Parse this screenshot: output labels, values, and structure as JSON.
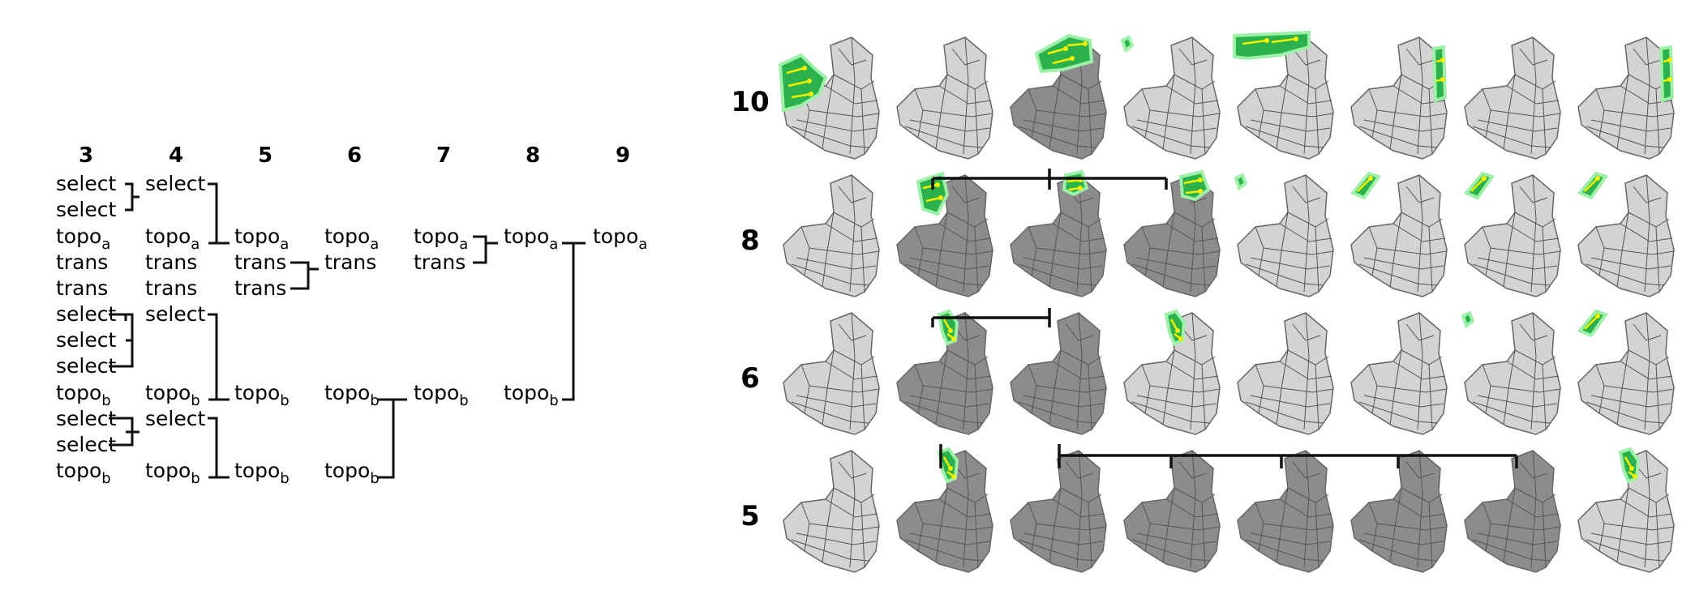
{
  "program_tree": {
    "column_labels": [
      "3",
      "4",
      "5",
      "6",
      "7",
      "8",
      "9"
    ],
    "columns": [
      [
        {
          "w": "select"
        },
        {
          "w": "select"
        },
        {
          "w": "topo",
          "s": "a"
        },
        {
          "w": "trans"
        },
        {
          "w": "trans"
        },
        {
          "w": "select"
        },
        {
          "w": "select"
        },
        {
          "w": "select"
        },
        {
          "w": "topo",
          "s": "b"
        },
        {
          "w": "select"
        },
        {
          "w": "select"
        },
        {
          "w": "topo",
          "s": "b"
        }
      ],
      [
        {
          "w": "select"
        },
        null,
        {
          "w": "topo",
          "s": "a"
        },
        {
          "w": "trans"
        },
        {
          "w": "trans"
        },
        {
          "w": "select"
        },
        null,
        null,
        {
          "w": "topo",
          "s": "b"
        },
        {
          "w": "select"
        },
        null,
        {
          "w": "topo",
          "s": "b"
        }
      ],
      [
        null,
        null,
        {
          "w": "topo",
          "s": "a"
        },
        {
          "w": "trans"
        },
        {
          "w": "trans"
        },
        null,
        null,
        null,
        {
          "w": "topo",
          "s": "b"
        },
        null,
        null,
        {
          "w": "topo",
          "s": "b"
        }
      ],
      [
        null,
        null,
        {
          "w": "topo",
          "s": "a"
        },
        {
          "w": "trans"
        },
        null,
        null,
        null,
        null,
        {
          "w": "topo",
          "s": "b"
        },
        null,
        null,
        {
          "w": "topo",
          "s": "b"
        }
      ],
      [
        null,
        null,
        {
          "w": "topo",
          "s": "a"
        },
        {
          "w": "trans"
        },
        null,
        null,
        null,
        null,
        {
          "w": "topo",
          "s": "b"
        },
        null,
        null,
        null
      ],
      [
        null,
        null,
        {
          "w": "topo",
          "s": "a"
        },
        null,
        null,
        null,
        null,
        null,
        {
          "w": "topo",
          "s": "b"
        },
        null,
        null,
        null
      ],
      [
        null,
        null,
        {
          "w": "topo",
          "s": "a"
        },
        null,
        null,
        null,
        null,
        null,
        null,
        null,
        null,
        null
      ]
    ]
  },
  "mesh_grid": {
    "row_labels": [
      "10",
      "8",
      "6",
      "5"
    ],
    "rows": [
      [
        {
          "tone": "light",
          "patch": "left-large"
        },
        {
          "tone": "light",
          "patch": "none"
        },
        {
          "tone": "dark",
          "patch": "top-right-large"
        },
        {
          "tone": "light",
          "patch": "speck-left"
        },
        {
          "tone": "light",
          "patch": "top-strip"
        },
        {
          "tone": "light",
          "patch": "side-strip"
        },
        {
          "tone": "light",
          "patch": "none"
        },
        {
          "tone": "light",
          "patch": "side-strip"
        }
      ],
      [
        {
          "tone": "light",
          "patch": "none"
        },
        {
          "tone": "dark",
          "patch": "top-left-medium"
        },
        {
          "tone": "dark",
          "patch": "top-right-small"
        },
        {
          "tone": "dark",
          "patch": "top-right-medium"
        },
        {
          "tone": "light",
          "patch": "speck-left"
        },
        {
          "tone": "light",
          "patch": "sliver"
        },
        {
          "tone": "light",
          "patch": "sliver"
        },
        {
          "tone": "light",
          "patch": "sliver"
        }
      ],
      [
        {
          "tone": "light",
          "patch": "none"
        },
        {
          "tone": "dark",
          "patch": "edge-small"
        },
        {
          "tone": "dark",
          "patch": "none"
        },
        {
          "tone": "light",
          "patch": "edge-small"
        },
        {
          "tone": "light",
          "patch": "none"
        },
        {
          "tone": "light",
          "patch": "none"
        },
        {
          "tone": "light",
          "patch": "speck-left"
        },
        {
          "tone": "light",
          "patch": "sliver"
        }
      ],
      [
        {
          "tone": "light",
          "patch": "none"
        },
        {
          "tone": "dark",
          "patch": "edge-small"
        },
        {
          "tone": "dark",
          "patch": "none"
        },
        {
          "tone": "dark",
          "patch": "none"
        },
        {
          "tone": "dark",
          "patch": "none"
        },
        {
          "tone": "dark",
          "patch": "none"
        },
        {
          "tone": "dark",
          "patch": "none"
        },
        {
          "tone": "light",
          "patch": "edge-small"
        }
      ]
    ]
  },
  "colors": {
    "light_mesh": "#d3d3d3",
    "dark_mesh": "#8c8c8c",
    "patch_fill": "#2bb24c",
    "patch_glow": "#9ef0a8",
    "arrow": "#f5f000"
  }
}
